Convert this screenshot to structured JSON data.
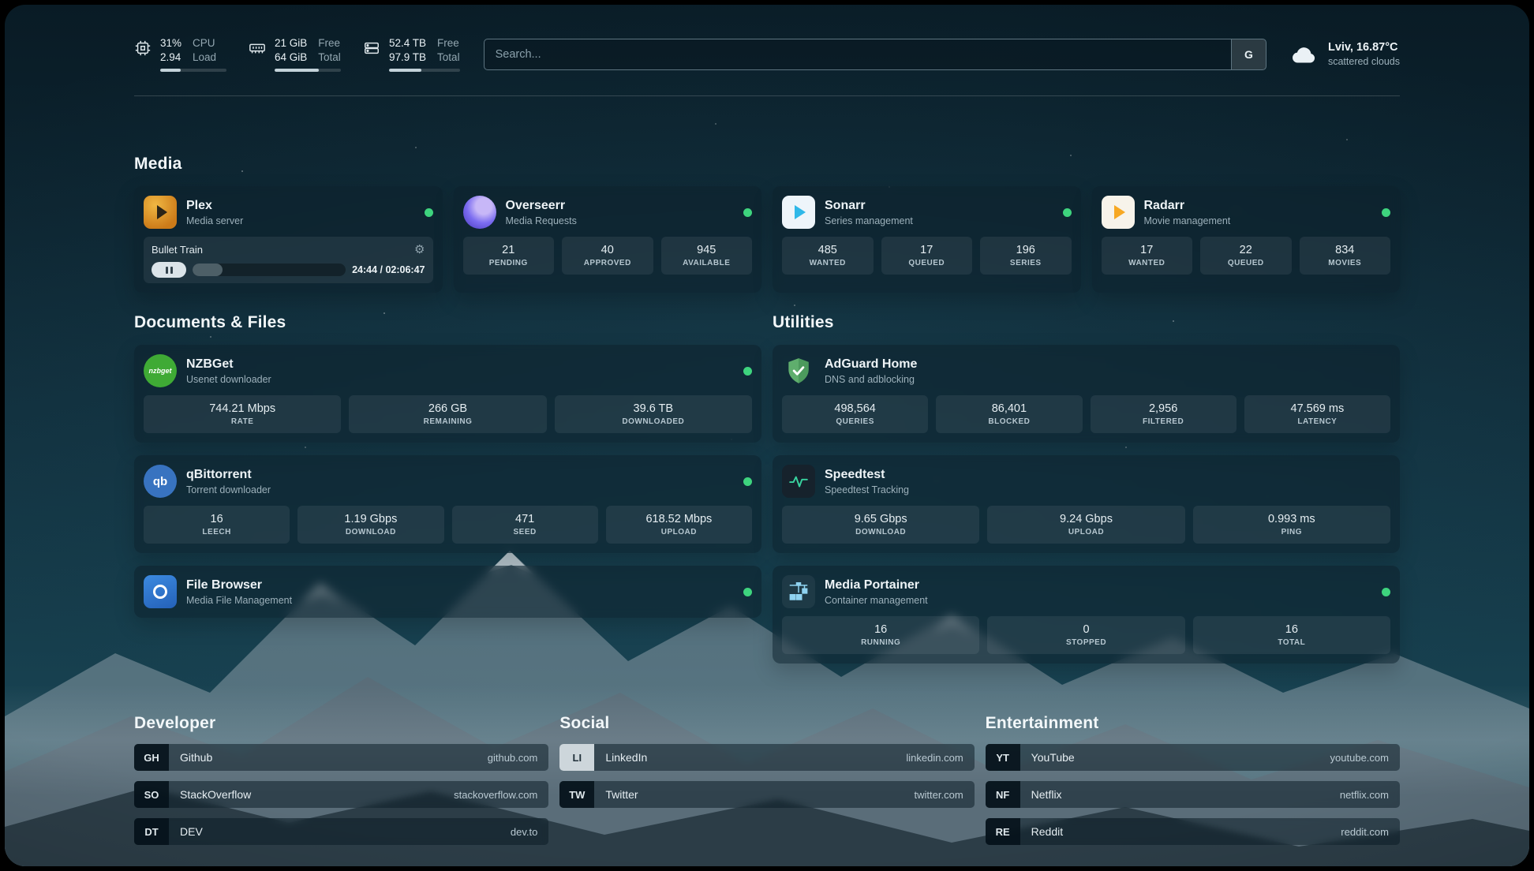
{
  "colors": {
    "status_green": "#3ed47e",
    "accent_teal": "#17404f"
  },
  "header": {
    "cpu": {
      "value1": "31%",
      "value2": "2.94",
      "label1": "CPU",
      "label2": "Load",
      "bar": 31
    },
    "memory": {
      "value1": "21 GiB",
      "value2": "64 GiB",
      "label1": "Free",
      "label2": "Total",
      "bar": 67
    },
    "disk": {
      "value1": "52.4 TB",
      "value2": "97.9 TB",
      "label1": "Free",
      "label2": "Total",
      "bar": 46
    },
    "search": {
      "placeholder": "Search...",
      "button_label": "G"
    },
    "weather": {
      "location": "Lviv, 16.87°C",
      "condition": "scattered clouds"
    }
  },
  "media": {
    "title": "Media",
    "plex": {
      "name": "Plex",
      "subtitle": "Media server",
      "now_playing": "Bullet Train",
      "time": "24:44 / 02:06:47",
      "progress": 19.5
    },
    "overseerr": {
      "name": "Overseerr",
      "subtitle": "Media Requests",
      "stats": [
        {
          "value": "21",
          "label": "PENDING"
        },
        {
          "value": "40",
          "label": "APPROVED"
        },
        {
          "value": "945",
          "label": "AVAILABLE"
        }
      ]
    },
    "sonarr": {
      "name": "Sonarr",
      "subtitle": "Series management",
      "stats": [
        {
          "value": "485",
          "label": "WANTED"
        },
        {
          "value": "17",
          "label": "QUEUED"
        },
        {
          "value": "196",
          "label": "SERIES"
        }
      ]
    },
    "radarr": {
      "name": "Radarr",
      "subtitle": "Movie management",
      "stats": [
        {
          "value": "17",
          "label": "WANTED"
        },
        {
          "value": "22",
          "label": "QUEUED"
        },
        {
          "value": "834",
          "label": "MOVIES"
        }
      ]
    }
  },
  "documents": {
    "title": "Documents & Files",
    "nzbget": {
      "name": "NZBGet",
      "subtitle": "Usenet downloader",
      "icon_text": "nzbget",
      "stats": [
        {
          "value": "744.21 Mbps",
          "label": "RATE"
        },
        {
          "value": "266 GB",
          "label": "REMAINING"
        },
        {
          "value": "39.6 TB",
          "label": "DOWNLOADED"
        }
      ]
    },
    "qbittorrent": {
      "name": "qBittorrent",
      "subtitle": "Torrent downloader",
      "icon_text": "qb",
      "stats": [
        {
          "value": "16",
          "label": "LEECH"
        },
        {
          "value": "1.19 Gbps",
          "label": "DOWNLOAD"
        },
        {
          "value": "471",
          "label": "SEED"
        },
        {
          "value": "618.52 Mbps",
          "label": "UPLOAD"
        }
      ]
    },
    "filebrowser": {
      "name": "File Browser",
      "subtitle": "Media File Management"
    }
  },
  "utilities": {
    "title": "Utilities",
    "adguard": {
      "name": "AdGuard Home",
      "subtitle": "DNS and adblocking",
      "stats": [
        {
          "value": "498,564",
          "label": "QUERIES"
        },
        {
          "value": "86,401",
          "label": "BLOCKED"
        },
        {
          "value": "2,956",
          "label": "FILTERED"
        },
        {
          "value": "47.569 ms",
          "label": "LATENCY"
        }
      ]
    },
    "speedtest": {
      "name": "Speedtest",
      "subtitle": "Speedtest Tracking",
      "stats": [
        {
          "value": "9.65 Gbps",
          "label": "DOWNLOAD"
        },
        {
          "value": "9.24 Gbps",
          "label": "UPLOAD"
        },
        {
          "value": "0.993 ms",
          "label": "PING"
        }
      ]
    },
    "portainer": {
      "name": "Media Portainer",
      "subtitle": "Container management",
      "stats": [
        {
          "value": "16",
          "label": "RUNNING"
        },
        {
          "value": "0",
          "label": "STOPPED"
        },
        {
          "value": "16",
          "label": "TOTAL"
        }
      ]
    }
  },
  "bookmarks": {
    "developer": {
      "title": "Developer",
      "links": [
        {
          "abbr": "GH",
          "name": "Github",
          "url": "github.com"
        },
        {
          "abbr": "SO",
          "name": "StackOverflow",
          "url": "stackoverflow.com"
        },
        {
          "abbr": "DT",
          "name": "DEV",
          "url": "dev.to"
        }
      ]
    },
    "social": {
      "title": "Social",
      "links": [
        {
          "abbr": "LI",
          "name": "LinkedIn",
          "url": "linkedin.com"
        },
        {
          "abbr": "TW",
          "name": "Twitter",
          "url": "twitter.com"
        }
      ]
    },
    "entertainment": {
      "title": "Entertainment",
      "links": [
        {
          "abbr": "YT",
          "name": "YouTube",
          "url": "youtube.com"
        },
        {
          "abbr": "NF",
          "name": "Netflix",
          "url": "netflix.com"
        },
        {
          "abbr": "RE",
          "name": "Reddit",
          "url": "reddit.com"
        }
      ]
    }
  }
}
